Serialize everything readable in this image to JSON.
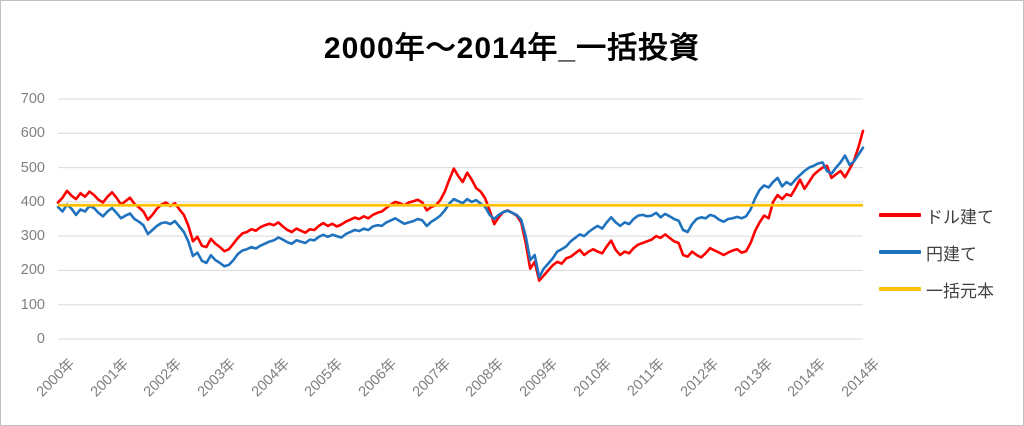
{
  "title": "2000年～2014年_一括投資",
  "legend": {
    "items": [
      {
        "label": "ドル建て",
        "color": "#FF0000"
      },
      {
        "label": "円建て",
        "color": "#1F72BE"
      },
      {
        "label": "一括元本",
        "color": "#FFC000"
      }
    ]
  },
  "chart_data": {
    "type": "line",
    "title": "2000年～2014年_一括投資",
    "x_unit": "month",
    "x_tick_labels": [
      "2000年",
      "2001年",
      "2002年",
      "2003年",
      "2004年",
      "2005年",
      "2006年",
      "2007年",
      "2008年",
      "2009年",
      "2010年",
      "2011年",
      "2012年",
      "2013年",
      "2014年",
      "2014年"
    ],
    "y_ticks": [
      0,
      100,
      200,
      300,
      400,
      500,
      600,
      700
    ],
    "ylim": [
      0,
      700
    ],
    "grid": true,
    "legend_position": "right",
    "series": [
      {
        "name": "ドル建て",
        "color": "#FF0000",
        "values": [
          398,
          412,
          432,
          418,
          408,
          425,
          415,
          430,
          420,
          406,
          398,
          415,
          428,
          412,
          392,
          402,
          412,
          394,
          384,
          372,
          348,
          362,
          380,
          392,
          398,
          388,
          396,
          378,
          362,
          330,
          285,
          298,
          272,
          268,
          292,
          278,
          268,
          256,
          262,
          278,
          295,
          308,
          312,
          320,
          316,
          326,
          332,
          336,
          332,
          340,
          328,
          318,
          312,
          322,
          316,
          310,
          320,
          318,
          330,
          338,
          330,
          336,
          328,
          334,
          342,
          348,
          354,
          350,
          358,
          352,
          362,
          368,
          372,
          382,
          392,
          400,
          396,
          390,
          398,
          402,
          406,
          398,
          375,
          385,
          390,
          405,
          430,
          465,
          497,
          475,
          458,
          485,
          465,
          440,
          430,
          410,
          375,
          335,
          355,
          370,
          375,
          368,
          360,
          340,
          280,
          205,
          225,
          170,
          185,
          200,
          215,
          225,
          220,
          235,
          240,
          250,
          260,
          245,
          255,
          262,
          255,
          250,
          270,
          287,
          260,
          245,
          255,
          250,
          265,
          275,
          280,
          285,
          290,
          300,
          295,
          305,
          295,
          285,
          280,
          245,
          240,
          255,
          245,
          238,
          250,
          265,
          258,
          252,
          245,
          252,
          258,
          262,
          252,
          256,
          280,
          315,
          340,
          360,
          352,
          400,
          420,
          408,
          422,
          418,
          440,
          465,
          438,
          458,
          478,
          490,
          500,
          505,
          470,
          480,
          490,
          472,
          495,
          520,
          560,
          607
        ]
      },
      {
        "name": "円建て",
        "color": "#1F72BE",
        "values": [
          385,
          372,
          392,
          380,
          362,
          378,
          372,
          388,
          382,
          368,
          358,
          372,
          382,
          368,
          352,
          360,
          366,
          350,
          342,
          332,
          306,
          318,
          330,
          338,
          340,
          335,
          344,
          328,
          312,
          284,
          242,
          252,
          228,
          222,
          244,
          230,
          222,
          212,
          216,
          230,
          248,
          258,
          262,
          268,
          264,
          272,
          278,
          284,
          288,
          296,
          290,
          282,
          278,
          288,
          284,
          280,
          290,
          288,
          298,
          304,
          298,
          304,
          300,
          296,
          306,
          312,
          318,
          315,
          322,
          318,
          328,
          332,
          330,
          340,
          346,
          352,
          344,
          336,
          340,
          344,
          350,
          346,
          330,
          342,
          350,
          360,
          375,
          395,
          408,
          402,
          396,
          408,
          400,
          405,
          395,
          385,
          362,
          350,
          362,
          370,
          374,
          368,
          362,
          348,
          300,
          230,
          245,
          180,
          205,
          220,
          235,
          255,
          262,
          270,
          285,
          295,
          305,
          300,
          312,
          322,
          330,
          322,
          340,
          355,
          340,
          330,
          340,
          335,
          350,
          360,
          362,
          358,
          360,
          368,
          355,
          365,
          358,
          350,
          345,
          318,
          312,
          335,
          350,
          355,
          352,
          362,
          358,
          348,
          342,
          350,
          352,
          356,
          352,
          358,
          378,
          410,
          435,
          448,
          442,
          458,
          470,
          445,
          458,
          450,
          465,
          478,
          490,
          500,
          505,
          512,
          515,
          490,
          482,
          500,
          515,
          535,
          508,
          518,
          538,
          558
        ]
      },
      {
        "name": "一括元本",
        "color": "#FFC000",
        "constant_value": 390
      }
    ]
  }
}
